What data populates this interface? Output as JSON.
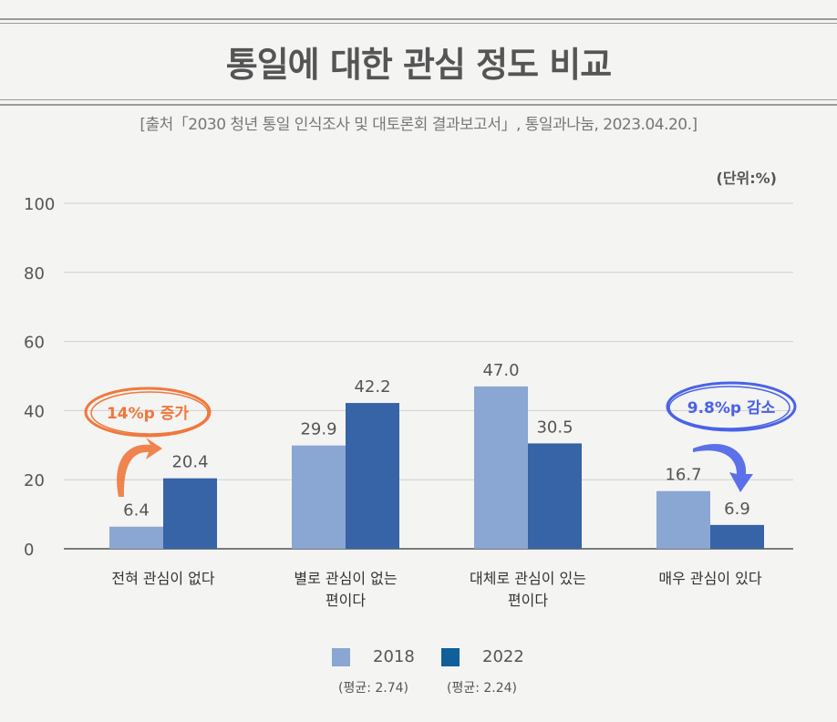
{
  "chart_data": {
    "type": "bar",
    "title": "통일에 대한 관심 정도 비교",
    "subtitle": "[출처「2030 청년 통일 인식조사 및 대토론회 결과보고서」, 통일과나눔, 2023.04.20.]",
    "unit_label": "(단위:%)",
    "categories": [
      "전혀 관심이 없다",
      "별로 관심이 없는 편이다",
      "대체로 관심이 있는 편이다",
      "매우 관심이 있다"
    ],
    "category_lines": [
      [
        "전혀 관심이 없다"
      ],
      [
        "별로 관심이 없는",
        "편이다"
      ],
      [
        "대체로 관심이 있는",
        "편이다"
      ],
      [
        "매우 관심이 있다"
      ]
    ],
    "series": [
      {
        "name": "2018",
        "values": [
          6.4,
          29.9,
          47.0,
          16.7
        ],
        "labels": [
          "6.4",
          "29.9",
          "47.0",
          "16.7"
        ],
        "color": "#8aa6d2",
        "legend_color": "#8aa6d2",
        "average": "(평균: 2.74)"
      },
      {
        "name": "2022",
        "values": [
          20.4,
          42.2,
          30.5,
          6.9
        ],
        "labels": [
          "20.4",
          "42.2",
          "30.5",
          "6.9"
        ],
        "color": "#3664a6",
        "legend_color": "#0f5f9a",
        "average": "(평균: 2.24)"
      }
    ],
    "ylim": [
      0,
      100
    ],
    "yticks": [
      0,
      20,
      40,
      60,
      80,
      100
    ],
    "grid": true,
    "legend_placement": "bottom",
    "annotations": [
      {
        "text": "14%p 증가",
        "category": "전혀 관심이 없다",
        "color": "#f0783c",
        "arrow": "up"
      },
      {
        "text": "9.8%p 감소",
        "category": "매우 관심이 있다",
        "color": "#4a62e8",
        "arrow": "down"
      }
    ]
  }
}
